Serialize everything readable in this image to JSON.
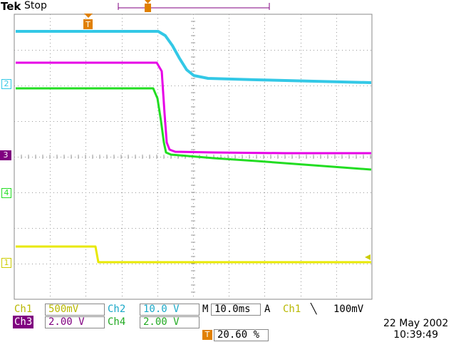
{
  "header": {
    "brand": "Tek",
    "state": "Stop"
  },
  "channels": {
    "ch1": {
      "name": "Ch1",
      "scale": "500mV",
      "marker": "1",
      "color": "#e8e800"
    },
    "ch2": {
      "name": "Ch2",
      "scale": "10.0 V",
      "marker": "2",
      "color": "#33c8e6"
    },
    "ch3": {
      "name": "Ch3",
      "scale": "2.00 V",
      "marker": "3",
      "color": "#e600e6"
    },
    "ch4": {
      "name": "Ch4",
      "scale": "2.00 V",
      "marker": "4",
      "color": "#22dd22"
    }
  },
  "timebase": {
    "label": "M",
    "value": "10.0ms"
  },
  "trigger": {
    "mode": "A",
    "source": "Ch1",
    "slope_icon": "falling-edge-icon",
    "slope": "╲",
    "level": "100mV",
    "position": "20.60 %",
    "marker": "T"
  },
  "timestamp": {
    "date": "22 May 2002",
    "time": "10:39:49"
  },
  "colors": {
    "grid": "#999999",
    "trigger": "#e08000",
    "ch3_badge": "#800080"
  }
}
